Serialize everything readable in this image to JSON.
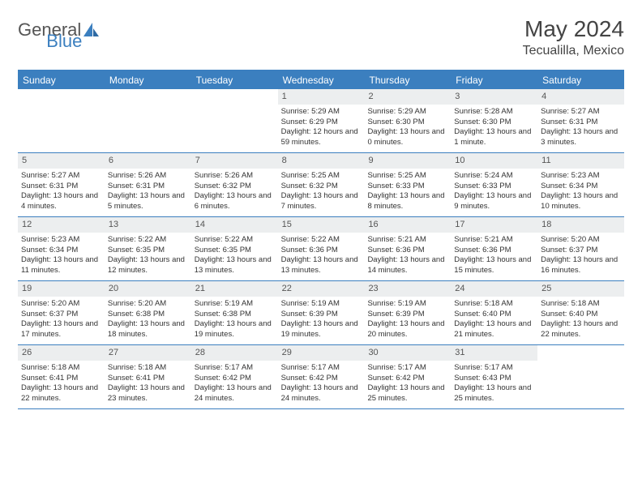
{
  "logo": {
    "word1": "General",
    "word2": "Blue",
    "word1_color": "#555555",
    "word2_color": "#3b7fbf"
  },
  "title": "May 2024",
  "location": "Tecualilla, Mexico",
  "colors": {
    "accent": "#3b7fbf",
    "header_bg": "#3b7fbf",
    "daynum_bg": "#eceeef",
    "text": "#333333",
    "border": "#3b7fbf"
  },
  "weekdays": [
    "Sunday",
    "Monday",
    "Tuesday",
    "Wednesday",
    "Thursday",
    "Friday",
    "Saturday"
  ],
  "weeks": [
    [
      {
        "num": "",
        "sunrise": "",
        "sunset": "",
        "daylight": ""
      },
      {
        "num": "",
        "sunrise": "",
        "sunset": "",
        "daylight": ""
      },
      {
        "num": "",
        "sunrise": "",
        "sunset": "",
        "daylight": ""
      },
      {
        "num": "1",
        "sunrise": "Sunrise: 5:29 AM",
        "sunset": "Sunset: 6:29 PM",
        "daylight": "Daylight: 12 hours and 59 minutes."
      },
      {
        "num": "2",
        "sunrise": "Sunrise: 5:29 AM",
        "sunset": "Sunset: 6:30 PM",
        "daylight": "Daylight: 13 hours and 0 minutes."
      },
      {
        "num": "3",
        "sunrise": "Sunrise: 5:28 AM",
        "sunset": "Sunset: 6:30 PM",
        "daylight": "Daylight: 13 hours and 1 minute."
      },
      {
        "num": "4",
        "sunrise": "Sunrise: 5:27 AM",
        "sunset": "Sunset: 6:31 PM",
        "daylight": "Daylight: 13 hours and 3 minutes."
      }
    ],
    [
      {
        "num": "5",
        "sunrise": "Sunrise: 5:27 AM",
        "sunset": "Sunset: 6:31 PM",
        "daylight": "Daylight: 13 hours and 4 minutes."
      },
      {
        "num": "6",
        "sunrise": "Sunrise: 5:26 AM",
        "sunset": "Sunset: 6:31 PM",
        "daylight": "Daylight: 13 hours and 5 minutes."
      },
      {
        "num": "7",
        "sunrise": "Sunrise: 5:26 AM",
        "sunset": "Sunset: 6:32 PM",
        "daylight": "Daylight: 13 hours and 6 minutes."
      },
      {
        "num": "8",
        "sunrise": "Sunrise: 5:25 AM",
        "sunset": "Sunset: 6:32 PM",
        "daylight": "Daylight: 13 hours and 7 minutes."
      },
      {
        "num": "9",
        "sunrise": "Sunrise: 5:25 AM",
        "sunset": "Sunset: 6:33 PM",
        "daylight": "Daylight: 13 hours and 8 minutes."
      },
      {
        "num": "10",
        "sunrise": "Sunrise: 5:24 AM",
        "sunset": "Sunset: 6:33 PM",
        "daylight": "Daylight: 13 hours and 9 minutes."
      },
      {
        "num": "11",
        "sunrise": "Sunrise: 5:23 AM",
        "sunset": "Sunset: 6:34 PM",
        "daylight": "Daylight: 13 hours and 10 minutes."
      }
    ],
    [
      {
        "num": "12",
        "sunrise": "Sunrise: 5:23 AM",
        "sunset": "Sunset: 6:34 PM",
        "daylight": "Daylight: 13 hours and 11 minutes."
      },
      {
        "num": "13",
        "sunrise": "Sunrise: 5:22 AM",
        "sunset": "Sunset: 6:35 PM",
        "daylight": "Daylight: 13 hours and 12 minutes."
      },
      {
        "num": "14",
        "sunrise": "Sunrise: 5:22 AM",
        "sunset": "Sunset: 6:35 PM",
        "daylight": "Daylight: 13 hours and 13 minutes."
      },
      {
        "num": "15",
        "sunrise": "Sunrise: 5:22 AM",
        "sunset": "Sunset: 6:36 PM",
        "daylight": "Daylight: 13 hours and 13 minutes."
      },
      {
        "num": "16",
        "sunrise": "Sunrise: 5:21 AM",
        "sunset": "Sunset: 6:36 PM",
        "daylight": "Daylight: 13 hours and 14 minutes."
      },
      {
        "num": "17",
        "sunrise": "Sunrise: 5:21 AM",
        "sunset": "Sunset: 6:36 PM",
        "daylight": "Daylight: 13 hours and 15 minutes."
      },
      {
        "num": "18",
        "sunrise": "Sunrise: 5:20 AM",
        "sunset": "Sunset: 6:37 PM",
        "daylight": "Daylight: 13 hours and 16 minutes."
      }
    ],
    [
      {
        "num": "19",
        "sunrise": "Sunrise: 5:20 AM",
        "sunset": "Sunset: 6:37 PM",
        "daylight": "Daylight: 13 hours and 17 minutes."
      },
      {
        "num": "20",
        "sunrise": "Sunrise: 5:20 AM",
        "sunset": "Sunset: 6:38 PM",
        "daylight": "Daylight: 13 hours and 18 minutes."
      },
      {
        "num": "21",
        "sunrise": "Sunrise: 5:19 AM",
        "sunset": "Sunset: 6:38 PM",
        "daylight": "Daylight: 13 hours and 19 minutes."
      },
      {
        "num": "22",
        "sunrise": "Sunrise: 5:19 AM",
        "sunset": "Sunset: 6:39 PM",
        "daylight": "Daylight: 13 hours and 19 minutes."
      },
      {
        "num": "23",
        "sunrise": "Sunrise: 5:19 AM",
        "sunset": "Sunset: 6:39 PM",
        "daylight": "Daylight: 13 hours and 20 minutes."
      },
      {
        "num": "24",
        "sunrise": "Sunrise: 5:18 AM",
        "sunset": "Sunset: 6:40 PM",
        "daylight": "Daylight: 13 hours and 21 minutes."
      },
      {
        "num": "25",
        "sunrise": "Sunrise: 5:18 AM",
        "sunset": "Sunset: 6:40 PM",
        "daylight": "Daylight: 13 hours and 22 minutes."
      }
    ],
    [
      {
        "num": "26",
        "sunrise": "Sunrise: 5:18 AM",
        "sunset": "Sunset: 6:41 PM",
        "daylight": "Daylight: 13 hours and 22 minutes."
      },
      {
        "num": "27",
        "sunrise": "Sunrise: 5:18 AM",
        "sunset": "Sunset: 6:41 PM",
        "daylight": "Daylight: 13 hours and 23 minutes."
      },
      {
        "num": "28",
        "sunrise": "Sunrise: 5:17 AM",
        "sunset": "Sunset: 6:42 PM",
        "daylight": "Daylight: 13 hours and 24 minutes."
      },
      {
        "num": "29",
        "sunrise": "Sunrise: 5:17 AM",
        "sunset": "Sunset: 6:42 PM",
        "daylight": "Daylight: 13 hours and 24 minutes."
      },
      {
        "num": "30",
        "sunrise": "Sunrise: 5:17 AM",
        "sunset": "Sunset: 6:42 PM",
        "daylight": "Daylight: 13 hours and 25 minutes."
      },
      {
        "num": "31",
        "sunrise": "Sunrise: 5:17 AM",
        "sunset": "Sunset: 6:43 PM",
        "daylight": "Daylight: 13 hours and 25 minutes."
      },
      {
        "num": "",
        "sunrise": "",
        "sunset": "",
        "daylight": ""
      }
    ]
  ]
}
